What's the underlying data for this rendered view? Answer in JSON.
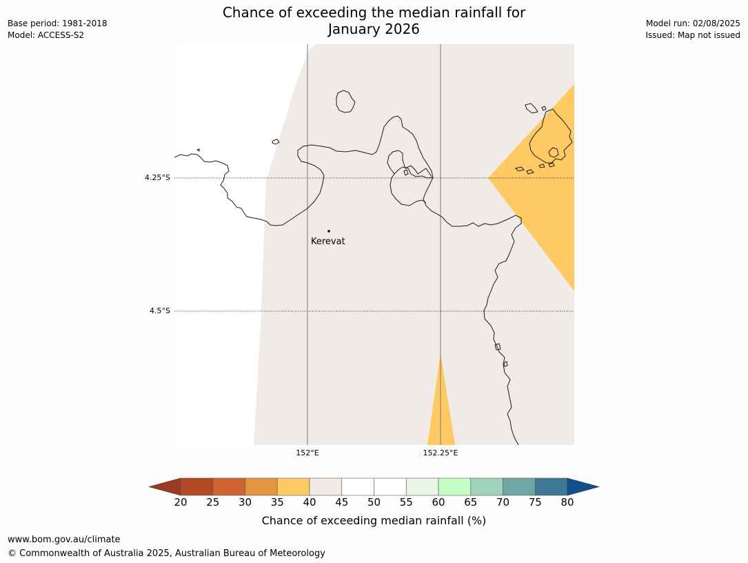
{
  "title_line1": "Chance of exceeding the median rainfall for",
  "title_line2": "January 2026",
  "meta_left": [
    "Base period: 1981-2018",
    "Model: ACCESS-S2"
  ],
  "meta_right": [
    "Model run: 02/08/2025",
    "Issued: Map not issued"
  ],
  "map": {
    "lat_labels": [
      "4.25°S",
      "4.5°S"
    ],
    "lon_labels": [
      "152°E",
      "152.25°E"
    ],
    "place": "Kerevat",
    "colors": {
      "ocean": "#ffffff",
      "fill_40_45": "#f0ebe6",
      "fill_35_40": "#ffca64",
      "coast": "#1a1a1a",
      "grid": "#777777"
    }
  },
  "colorbar": {
    "ticks": [
      "20",
      "25",
      "30",
      "35",
      "40",
      "45",
      "50",
      "55",
      "60",
      "65",
      "70",
      "75",
      "80"
    ],
    "colors": [
      "#b24a24",
      "#cf6433",
      "#e39442",
      "#ffca64",
      "#f0ebe6",
      "#ffffff",
      "#ffffff",
      "#e9f6e6",
      "#c6fcc6",
      "#9fd3bd",
      "#6fa6a6",
      "#3f7797"
    ],
    "low_extend_color": "#9e3a22",
    "high_extend_color": "#134e8c",
    "label": "Chance of exceeding median rainfall (%)"
  },
  "footer": {
    "url": "www.bom.gov.au/climate",
    "copyright": "© Commonwealth of Australia 2025, Australian Bureau of Meteorology"
  }
}
